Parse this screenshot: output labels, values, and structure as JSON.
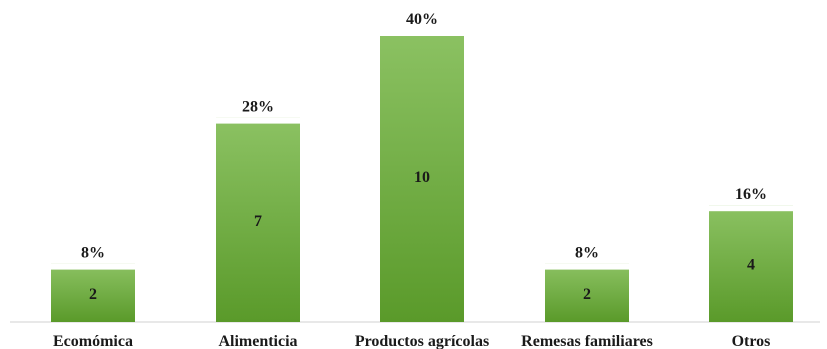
{
  "chart_data": {
    "type": "bar",
    "categories": [
      "Ecomómica",
      "Alimenticia",
      "Productos agrícolas",
      "Remesas familiares",
      "Otros"
    ],
    "values": [
      2,
      7,
      10,
      2,
      4
    ],
    "percent_labels": [
      "8%",
      "28%",
      "40%",
      "8%",
      "16%"
    ],
    "ylim": [
      0,
      10
    ],
    "grid": false,
    "legend": "none",
    "colors": {
      "bar_top": "#8cc263",
      "bar_bottom": "#5a9a2a",
      "cap": "#ffffff",
      "axis": "#d0d0d0",
      "text": "#1a1a1a"
    }
  }
}
